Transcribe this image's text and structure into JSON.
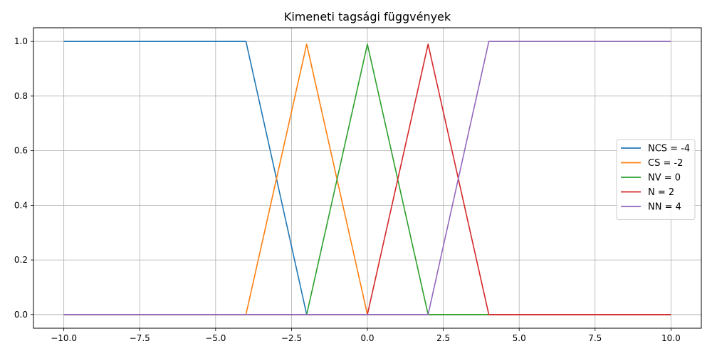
{
  "chart_data": {
    "type": "line",
    "title": "Kimeneti tagsági függvények",
    "xlabel": "",
    "ylabel": "",
    "xlim": [
      -11,
      11
    ],
    "ylim": [
      -0.05,
      1.05
    ],
    "xticks": [
      -10.0,
      -7.5,
      -5.0,
      -2.5,
      0.0,
      2.5,
      5.0,
      7.5,
      10.0
    ],
    "xtick_labels": [
      "−10.0",
      "−7.5",
      "−5.0",
      "−2.5",
      "0.0",
      "2.5",
      "5.0",
      "7.5",
      "10.0"
    ],
    "yticks": [
      0.0,
      0.2,
      0.4,
      0.6,
      0.8,
      1.0
    ],
    "ytick_labels": [
      "0.0",
      "0.2",
      "0.4",
      "0.6",
      "0.8",
      "1.0"
    ],
    "grid": true,
    "legend_position": "right",
    "series": [
      {
        "name": "NCS = -4",
        "color": "#1f77b4",
        "x": [
          -10,
          -4,
          -2,
          10
        ],
        "y": [
          1,
          1,
          0,
          0
        ]
      },
      {
        "name": "CS = -2",
        "color": "#ff7f0e",
        "x": [
          -10,
          -4,
          -2,
          0,
          10
        ],
        "y": [
          0,
          0,
          0.99,
          0,
          0
        ]
      },
      {
        "name": "NV = 0",
        "color": "#2ca02c",
        "x": [
          -10,
          -2,
          0,
          2,
          10
        ],
        "y": [
          0,
          0,
          0.99,
          0,
          0
        ]
      },
      {
        "name": "N = 2",
        "color": "#d62728",
        "x": [
          -10,
          0,
          2,
          4,
          10
        ],
        "y": [
          0,
          0,
          0.99,
          0,
          0
        ]
      },
      {
        "name": "NN = 4",
        "color": "#9467bd",
        "x": [
          -10,
          2,
          4,
          10
        ],
        "y": [
          0,
          0,
          1,
          1
        ]
      }
    ]
  }
}
